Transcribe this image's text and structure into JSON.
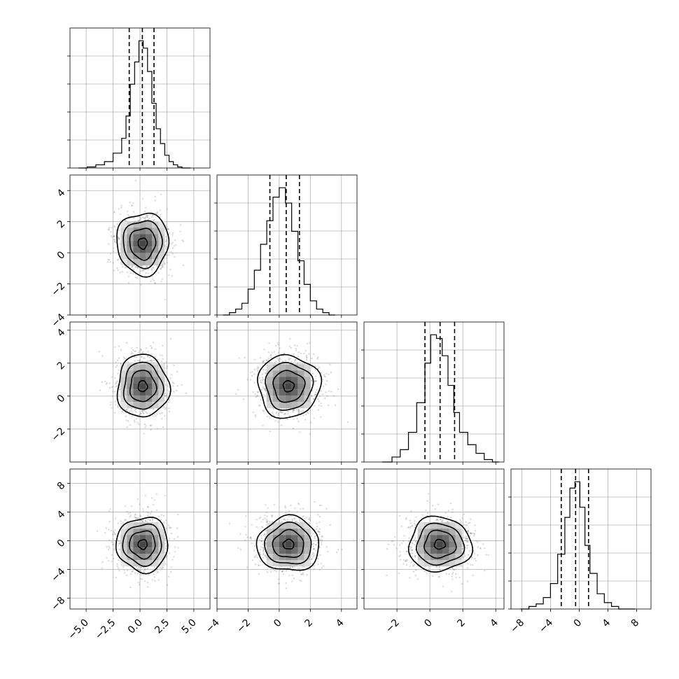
{
  "chart_data": {
    "type": "corner",
    "parameters": [
      {
        "range": [
          -6.5,
          6.5
        ],
        "ticks": [
          -5.0,
          -2.5,
          0.0,
          2.5,
          5.0
        ],
        "tick_labels": [
          "−5.0",
          "−2.5",
          "0.0",
          "2.5",
          "5.0"
        ],
        "quantiles": [
          -1.0,
          0.22,
          1.3
        ],
        "hist_bins": [
          -5.7,
          -4.9,
          -4.1,
          -3.3,
          -2.5,
          -1.7,
          -1.3,
          -0.9,
          -0.5,
          -0.1,
          0.3,
          0.7,
          1.1,
          1.5,
          1.9,
          2.3,
          2.7,
          3.1,
          3.5,
          3.9,
          4.7
        ],
        "hist_counts": [
          0,
          1,
          3,
          6,
          14,
          28,
          49,
          79,
          100,
          120,
          113,
          91,
          61,
          37,
          23,
          12,
          6,
          3,
          1,
          0
        ],
        "center": 0.25,
        "sigma": 1.2
      },
      {
        "range": [
          -4,
          5
        ],
        "ticks": [
          -4,
          -2,
          0,
          2,
          4
        ],
        "tick_labels": [
          "−4",
          "−2",
          "0",
          "2",
          "4"
        ],
        "quantiles": [
          -0.6,
          0.45,
          1.3
        ],
        "hist_bins": [
          -3.6,
          -3.2,
          -2.8,
          -2.4,
          -2.0,
          -1.6,
          -1.2,
          -0.8,
          -0.4,
          0.0,
          0.4,
          0.8,
          1.2,
          1.6,
          2.0,
          2.4,
          2.8,
          3.2,
          3.6
        ],
        "hist_counts": [
          0,
          2,
          5,
          10,
          22,
          38,
          60,
          80,
          100,
          108,
          95,
          71,
          46,
          26,
          12,
          5,
          2,
          0
        ],
        "center": 0.6,
        "sigma": 1.0
      },
      {
        "range": [
          -4,
          4.5
        ],
        "ticks": [
          -2,
          0,
          2,
          4
        ],
        "tick_labels": [
          "−2",
          "0",
          "2",
          "4"
        ],
        "quantiles": [
          -0.3,
          0.62,
          1.5
        ],
        "hist_bins": [
          -2.9,
          -2.3,
          -1.8,
          -1.3,
          -0.8,
          -0.3,
          0.05,
          0.4,
          0.75,
          1.1,
          1.45,
          1.8,
          2.3,
          2.8,
          3.3,
          3.8,
          4.2
        ],
        "hist_counts": [
          0,
          4,
          10,
          24,
          48,
          80,
          103,
          100,
          86,
          62,
          40,
          24,
          14,
          7,
          2,
          0
        ],
        "center": 0.6,
        "sigma": 0.95
      },
      {
        "range": [
          -9.5,
          10
        ],
        "ticks": [
          -8,
          -4,
          0,
          4,
          8
        ],
        "tick_labels": [
          "−8",
          "−4",
          "0",
          "4",
          "8"
        ],
        "quantiles": [
          -2.5,
          -0.5,
          1.3
        ],
        "hist_bins": [
          -8.2,
          -7.0,
          -6.0,
          -5.0,
          -4.0,
          -3.0,
          -2.0,
          -1.3,
          -0.6,
          0.1,
          0.8,
          1.5,
          2.5,
          3.5,
          4.5,
          5.5,
          6.5,
          7.8
        ],
        "hist_counts": [
          0,
          2,
          4,
          9,
          20,
          43,
          72,
          95,
          100,
          80,
          50,
          28,
          12,
          5,
          2,
          0,
          0
        ],
        "center": -0.5,
        "sigma": 1.9
      }
    ],
    "contour_levels": 4,
    "grid": true
  }
}
